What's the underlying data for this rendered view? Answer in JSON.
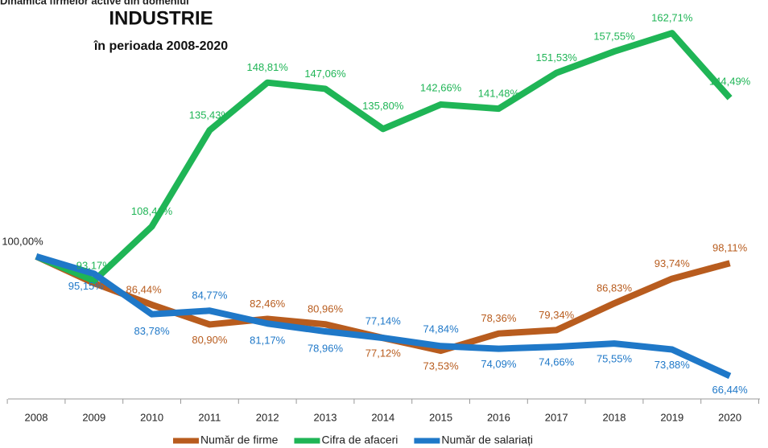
{
  "chart_data": {
    "type": "line",
    "title": "INDUSTRIE",
    "header": "Dinamica firmelor active din domeniul",
    "subtitle": "în perioada 2008-2020",
    "categories": [
      "2008",
      "2009",
      "2010",
      "2011",
      "2012",
      "2013",
      "2014",
      "2015",
      "2016",
      "2017",
      "2018",
      "2019",
      "2020"
    ],
    "ylim": [
      60,
      172
    ],
    "series": [
      {
        "name": "Număr de firme",
        "color": "#b85c1e",
        "values": [
          100,
          92.5,
          86.44,
          80.9,
          82.46,
          80.96,
          77.12,
          73.53,
          78.36,
          79.34,
          86.83,
          93.74,
          98.11
        ],
        "value_labels": [
          null,
          null,
          "86,44%",
          "80,90%",
          "82,46%",
          "80,96%",
          "77,12%",
          "73,53%",
          "78,36%",
          "79,34%",
          "86,83%",
          "93,74%",
          "98,11%"
        ]
      },
      {
        "name": "Cifra de afaceri",
        "color": "#1fb556",
        "values": [
          100,
          93.17,
          108.41,
          135.43,
          148.81,
          147.06,
          135.8,
          142.66,
          141.48,
          151.53,
          157.55,
          162.71,
          144.49
        ],
        "value_labels": [
          "100,00%",
          "93,17%",
          "108,41%",
          "135,43%",
          "148,81%",
          "147,06%",
          "135,80%",
          "142,66%",
          "141,48%",
          "151,53%",
          "157,55%",
          "162,71%",
          "144,49%"
        ]
      },
      {
        "name": "Număr de salariați",
        "color": "#1f78c8",
        "values": [
          100,
          95.15,
          83.78,
          84.77,
          81.17,
          78.96,
          77.14,
          74.84,
          74.09,
          74.66,
          75.55,
          73.88,
          66.44
        ],
        "value_labels": [
          null,
          "95,15%",
          "83,78%",
          "84,77%",
          "81,17%",
          "78,96%",
          "77,14%",
          "74,84%",
          "74,09%",
          "74,66%",
          "75,55%",
          "73,88%",
          "66,44%"
        ]
      }
    ]
  }
}
